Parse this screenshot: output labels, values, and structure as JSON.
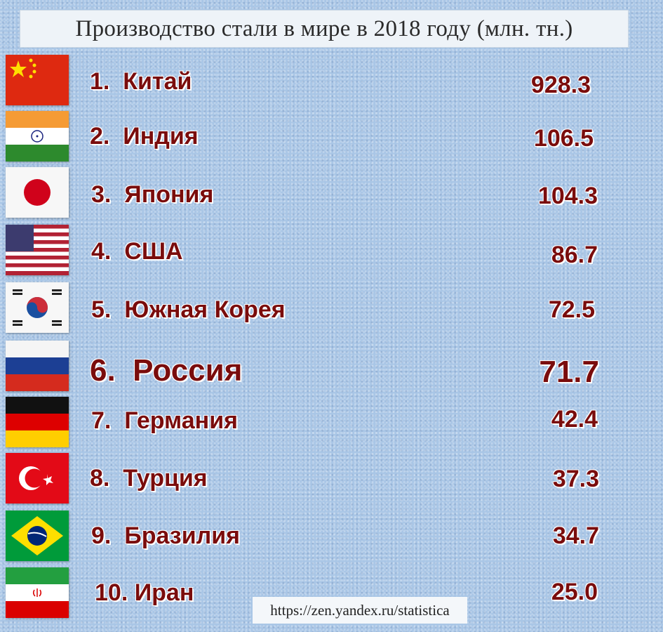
{
  "title": "Производство стали в мире в 2018 году (млн. тн.)",
  "source": "https://zen.yandex.ru/statistica",
  "chart_data": {
    "type": "table",
    "title": "Производство стали в мире в 2018 году (млн. тн.)",
    "unit": "млн. тн.",
    "rows": [
      {
        "rank": "1.",
        "country": "Китай",
        "value": "928.3",
        "flag": "china-flag-icon"
      },
      {
        "rank": "2.",
        "country": "Индия",
        "value": "106.5",
        "flag": "india-flag-icon"
      },
      {
        "rank": "3.",
        "country": "Япония",
        "value": "104.3",
        "flag": "japan-flag-icon"
      },
      {
        "rank": "4.",
        "country": "США",
        "value": "86.7",
        "flag": "usa-flag-icon"
      },
      {
        "rank": "5.",
        "country": "Южная Корея",
        "value": "72.5",
        "flag": "south-korea-flag-icon"
      },
      {
        "rank": "6.",
        "country": "Россия",
        "value": "71.7",
        "flag": "russia-flag-icon",
        "highlight": true
      },
      {
        "rank": "7.",
        "country": "Германия",
        "value": "42.4",
        "flag": "germany-flag-icon"
      },
      {
        "rank": "8.",
        "country": "Турция",
        "value": "37.3",
        "flag": "turkey-flag-icon"
      },
      {
        "rank": "9.",
        "country": "Бразилия",
        "value": "34.7",
        "flag": "brazil-flag-icon"
      },
      {
        "rank": "10.",
        "country": "Иран",
        "value": "25.0",
        "flag": "iran-flag-icon"
      }
    ]
  },
  "colors": {
    "text": "#7a0c0c",
    "background": "#a9c6e6",
    "title_box": "#eef3f8"
  }
}
